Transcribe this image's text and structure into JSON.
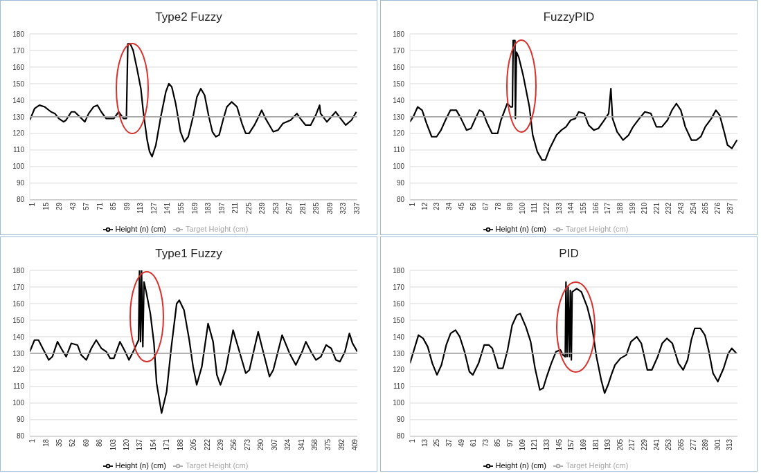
{
  "chart_data": [
    {
      "type": "line",
      "title": "Type2 Fuzzy",
      "grid": "y",
      "legend": "bottom",
      "xlim": [
        1,
        340
      ],
      "ylim": [
        80,
        180
      ],
      "yticks": [
        80,
        90,
        100,
        110,
        120,
        130,
        140,
        150,
        160,
        170,
        180
      ],
      "xticks": [
        1,
        15,
        29,
        43,
        57,
        71,
        85,
        99,
        113,
        127,
        141,
        155,
        169,
        183,
        197,
        211,
        225,
        239,
        253,
        267,
        281,
        295,
        309,
        323,
        337
      ],
      "series": [
        {
          "name": "Height (n) (cm)",
          "color": "#000000",
          "x": [
            1,
            6,
            11,
            16.5,
            23,
            27,
            31,
            36,
            38.5,
            44,
            47.5,
            51,
            58,
            62,
            67,
            71,
            75,
            80,
            88,
            93,
            98,
            101,
            102.5,
            105,
            108,
            112,
            116,
            118.5,
            122.5,
            125,
            127.6,
            131.5,
            136.6,
            141.8,
            145,
            148,
            152,
            157,
            161,
            165,
            170,
            174,
            178,
            182,
            186,
            190,
            193.5,
            197,
            201,
            205,
            210,
            215.5,
            220.6,
            224.5,
            228,
            233.5,
            238.7,
            241,
            245,
            249,
            253,
            258,
            263,
            271,
            277.5,
            281,
            286.5,
            291.7,
            297,
            301,
            302,
            308.5,
            317.6,
            322.7,
            328,
            334,
            339
          ],
          "values": [
            128,
            135,
            137,
            136,
            133,
            132,
            129,
            127,
            128,
            133,
            133,
            131,
            127,
            132,
            136,
            137,
            133,
            129,
            129,
            133,
            129,
            129,
            174,
            174,
            170,
            159,
            147,
            133,
            116,
            109,
            106,
            113,
            130,
            145,
            150,
            148,
            138,
            121,
            115,
            118,
            130,
            142,
            147,
            143,
            131,
            121,
            118,
            119,
            128,
            136,
            139,
            136,
            126,
            120,
            120,
            125,
            131,
            134,
            129,
            125,
            121,
            122,
            126,
            128,
            132,
            129,
            125,
            125,
            131,
            137,
            132,
            127,
            133,
            129,
            125,
            128,
            133
          ]
        },
        {
          "name": "Target Height (cm)",
          "color": "#a6a6a6",
          "x": [
            1,
            340
          ],
          "values": [
            130,
            130
          ]
        }
      ]
    },
    {
      "type": "line",
      "title": "FuzzyPID",
      "grid": "y",
      "legend": "bottom",
      "xlim": [
        1,
        296
      ],
      "ylim": [
        80,
        180
      ],
      "yticks": [
        80,
        90,
        100,
        110,
        120,
        130,
        140,
        150,
        160,
        170,
        180
      ],
      "xticks": [
        1,
        12,
        23,
        34,
        45,
        56,
        67,
        78,
        89,
        100,
        111,
        122,
        133,
        144,
        155,
        166,
        177,
        188,
        199,
        210,
        221,
        232,
        243,
        254,
        265,
        276,
        287
      ],
      "series": [
        {
          "name": "Height (n) (cm)",
          "color": "#000000",
          "x": [
            1,
            4,
            8,
            12,
            16,
            20.6,
            25,
            29,
            33,
            37.5,
            42.8,
            47,
            52,
            56,
            60,
            63.5,
            66.6,
            70.7,
            75,
            80,
            83,
            88.6,
            91.6,
            93.3,
            94,
            95.6,
            96,
            97,
            99,
            103,
            108.6,
            111.6,
            115.7,
            120,
            123,
            127,
            133,
            137.5,
            141.6,
            145.8,
            150,
            153,
            158,
            162,
            166.6,
            170.7,
            175,
            180,
            182,
            183.5,
            187.6,
            193,
            198,
            202,
            207.6,
            212.6,
            218,
            223,
            228,
            233,
            237,
            241,
            245,
            249,
            254.5,
            259,
            263,
            267,
            272.5,
            276.6,
            280,
            284,
            287,
            291,
            295.6
          ],
          "values": [
            127,
            130,
            136,
            134,
            126,
            118,
            118,
            122,
            128,
            134,
            134,
            129,
            122,
            123,
            129,
            134,
            133,
            126,
            120,
            120,
            128,
            138,
            136,
            136,
            176,
            176,
            129,
            169,
            166,
            155,
            136,
            119,
            109,
            104,
            104,
            111,
            119,
            122,
            124,
            128,
            129,
            133,
            132,
            125,
            122,
            123,
            127,
            132,
            147,
            129,
            121,
            116,
            119,
            124,
            129,
            133,
            132,
            124,
            124,
            128,
            134,
            138,
            134,
            124,
            116,
            116,
            118,
            124,
            129,
            134,
            131,
            121,
            113,
            111,
            116
          ]
        },
        {
          "name": "Target Height (cm)",
          "color": "#a6a6a6",
          "x": [
            1,
            296
          ],
          "values": [
            130,
            130
          ]
        }
      ]
    },
    {
      "type": "line",
      "title": "Type1 Fuzzy",
      "grid": "y",
      "legend": "bottom",
      "xlim": [
        1,
        415
      ],
      "ylim": [
        80,
        180
      ],
      "yticks": [
        80,
        90,
        100,
        110,
        120,
        130,
        140,
        150,
        160,
        170,
        180
      ],
      "xticks": [
        1,
        18,
        35,
        52,
        69,
        86,
        103,
        120,
        137,
        154,
        171,
        188,
        205,
        222,
        239,
        256,
        273,
        290,
        307,
        324,
        341,
        358,
        375,
        392,
        409
      ],
      "series": [
        {
          "name": "Height (n) (cm)",
          "color": "#000000",
          "x": [
            1,
            7,
            12,
            18.5,
            25,
            29.6,
            36,
            40.7,
            47,
            53.4,
            61.3,
            66,
            72.4,
            78.8,
            85,
            91.5,
            97.8,
            102.6,
            107.3,
            115,
            121.6,
            126.4,
            132.7,
            138.5,
            139.7,
            141,
            142.3,
            143.9,
            145.4,
            148.6,
            153.4,
            158,
            161.3,
            167.6,
            174,
            180,
            186.7,
            190,
            196,
            202.6,
            207.4,
            212,
            218.5,
            226.4,
            232.7,
            237.5,
            242,
            248.6,
            258,
            266,
            274,
            278.6,
            289.7,
            296,
            304,
            308.8,
            320,
            329.4,
            337.3,
            345.3,
            350,
            356.4,
            362.7,
            369,
            375.6,
            382,
            388,
            393,
            399.4,
            405,
            409,
            415
          ],
          "values": [
            131,
            138,
            138,
            132,
            126,
            128,
            137,
            133,
            128,
            136,
            135,
            129,
            126,
            133,
            138,
            133,
            131,
            127,
            127,
            137,
            131,
            126,
            132,
            138,
            180,
            137,
            180,
            134,
            173,
            166,
            154,
            136,
            112,
            94,
            107,
            134,
            160,
            162,
            156,
            138,
            122,
            111,
            122,
            148,
            137,
            117,
            111,
            120,
            144,
            131,
            118,
            120,
            143,
            131,
            116,
            120,
            141,
            130,
            123,
            131,
            137,
            131,
            126,
            128,
            135,
            133,
            126,
            125,
            131,
            142,
            136,
            131
          ]
        },
        {
          "name": "Target Height (cm)",
          "color": "#a6a6a6",
          "x": [
            1,
            415
          ],
          "values": [
            130,
            130
          ]
        }
      ]
    },
    {
      "type": "line",
      "title": "PID",
      "grid": "y",
      "legend": "bottom",
      "xlim": [
        1,
        323
      ],
      "ylim": [
        80,
        180
      ],
      "yticks": [
        80,
        90,
        100,
        110,
        120,
        130,
        140,
        150,
        160,
        170,
        180
      ],
      "xticks": [
        1,
        13,
        25,
        37,
        49,
        61,
        73,
        85,
        97,
        109,
        121,
        133,
        145,
        157,
        169,
        181,
        193,
        205,
        217,
        229,
        241,
        253,
        265,
        277,
        289,
        301,
        313
      ],
      "series": [
        {
          "name": "Height (n) (cm)",
          "color": "#000000",
          "x": [
            1,
            4,
            9.4,
            14,
            18.5,
            23,
            27.6,
            32,
            36.7,
            41,
            45.8,
            50,
            54.7,
            59.4,
            62.8,
            68.5,
            74,
            78.7,
            82,
            87.8,
            92.4,
            97,
            101.5,
            106,
            109.4,
            115,
            119.7,
            124,
            128.7,
            132,
            135.5,
            140,
            144.6,
            149,
            151.5,
            153.7,
            154.4,
            155.5,
            156.5,
            157.8,
            158.7,
            159.7,
            160.5,
            165,
            169.6,
            175.3,
            179.8,
            184.4,
            189,
            192.4,
            195.8,
            199,
            202.6,
            208,
            213.7,
            218.3,
            224,
            228.5,
            234.4,
            238.8,
            244.6,
            249,
            253.7,
            259,
            265,
            269.6,
            274,
            277.6,
            281,
            286.6,
            291,
            294.6,
            299,
            303.7,
            309.4,
            314,
            317.4,
            322
          ],
          "values": [
            124,
            130,
            141,
            139,
            134,
            124,
            117,
            123,
            135,
            142,
            144,
            140,
            131,
            119,
            117,
            124,
            135,
            135,
            133,
            121,
            121,
            132,
            147,
            153,
            154,
            146,
            137,
            121,
            108,
            109,
            116,
            124,
            131,
            132,
            129,
            128,
            173,
            128,
            170,
            128,
            168,
            126,
            167,
            169,
            167,
            158,
            147,
            128,
            114,
            106,
            111,
            117,
            123,
            127,
            129,
            137,
            140,
            136,
            120,
            120,
            128,
            136,
            139,
            136,
            124,
            120,
            126,
            138,
            145,
            145,
            141,
            132,
            118,
            113,
            121,
            130,
            133,
            130
          ]
        },
        {
          "name": "Target Height (cm)",
          "color": "#a6a6a6",
          "x": [
            1,
            323
          ],
          "values": [
            130,
            130
          ]
        }
      ]
    }
  ]
}
